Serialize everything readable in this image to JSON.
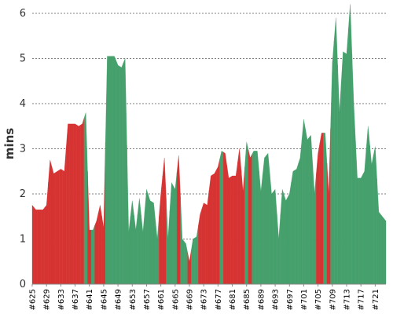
{
  "chart_data": {
    "type": "area",
    "ylabel": "mins",
    "ylim": [
      0,
      6
    ],
    "yticks": [
      0,
      1,
      2,
      3,
      4,
      5,
      6
    ],
    "grid": true,
    "colors": {
      "slower": "#d63333",
      "faster": "#45a06c"
    },
    "x": [
      "#625",
      "#626",
      "#627",
      "#628",
      "#629",
      "#630",
      "#631",
      "#632",
      "#633",
      "#634",
      "#635",
      "#636",
      "#637",
      "#638",
      "#639",
      "#640",
      "#641",
      "#642",
      "#643",
      "#644",
      "#645",
      "#646",
      "#647",
      "#648",
      "#649",
      "#650",
      "#651",
      "#652",
      "#653",
      "#654",
      "#655",
      "#656",
      "#657",
      "#658",
      "#659",
      "#660",
      "#661",
      "#662",
      "#663",
      "#664",
      "#665",
      "#666",
      "#667",
      "#668",
      "#669",
      "#670",
      "#671",
      "#672",
      "#673",
      "#674",
      "#675",
      "#676",
      "#677",
      "#678",
      "#679",
      "#680",
      "#681",
      "#682",
      "#683",
      "#684",
      "#685",
      "#686",
      "#687",
      "#688",
      "#689",
      "#690",
      "#691",
      "#692",
      "#693",
      "#694",
      "#695",
      "#696",
      "#697",
      "#698",
      "#699",
      "#700",
      "#701",
      "#702",
      "#703",
      "#704",
      "#705",
      "#706",
      "#707",
      "#708",
      "#709",
      "#710",
      "#711",
      "#712",
      "#713",
      "#714",
      "#715",
      "#716",
      "#717",
      "#718",
      "#719",
      "#720",
      "#721",
      "#722",
      "#723",
      "#724"
    ],
    "xticks": [
      "#625",
      "#629",
      "#633",
      "#637",
      "#641",
      "#645",
      "#649",
      "#653",
      "#657",
      "#661",
      "#665",
      "#669",
      "#673",
      "#677",
      "#681",
      "#685",
      "#689",
      "#693",
      "#697",
      "#701",
      "#705",
      "#709",
      "#713",
      "#717",
      "#721"
    ],
    "y": [
      1.75,
      1.65,
      1.65,
      1.65,
      1.75,
      2.75,
      2.45,
      2.5,
      2.55,
      2.5,
      3.55,
      3.55,
      3.55,
      3.5,
      3.55,
      3.8,
      1.2,
      1.2,
      1.4,
      1.75,
      1.25,
      5.05,
      5.05,
      5.05,
      4.85,
      4.8,
      5.0,
      1.15,
      1.85,
      1.2,
      1.9,
      1.15,
      2.1,
      1.85,
      1.8,
      1.0,
      2.0,
      2.8,
      1.0,
      2.25,
      2.1,
      2.85,
      1.0,
      0.9,
      0.5,
      1.0,
      1.05,
      1.55,
      1.8,
      1.75,
      2.4,
      2.45,
      2.6,
      2.95,
      2.9,
      2.35,
      2.4,
      2.4,
      3.0,
      2.05,
      3.15,
      2.8,
      2.95,
      2.95,
      2.05,
      2.8,
      2.9,
      2.0,
      2.1,
      1.0,
      2.1,
      1.85,
      2.0,
      2.5,
      2.55,
      2.8,
      3.65,
      3.2,
      3.3,
      2.0,
      2.9,
      3.35,
      3.35,
      2.0,
      4.9,
      5.9,
      3.8,
      5.15,
      5.1,
      6.2,
      4.0,
      2.35,
      2.35,
      2.5,
      3.5,
      2.65,
      3.05,
      1.6,
      1.5,
      1.4
    ],
    "category": [
      "slower",
      "slower",
      "slower",
      "slower",
      "slower",
      "slower",
      "slower",
      "slower",
      "slower",
      "slower",
      "slower",
      "slower",
      "slower",
      "slower",
      "slower",
      "faster",
      "slower",
      "faster",
      "slower",
      "slower",
      "slower",
      "faster",
      "faster",
      "faster",
      "faster",
      "faster",
      "faster",
      "faster",
      "faster",
      "faster",
      "faster",
      "faster",
      "faster",
      "faster",
      "faster",
      "faster",
      "slower",
      "slower",
      "faster",
      "faster",
      "faster",
      "slower",
      "faster",
      "faster",
      "slower",
      "faster",
      "faster",
      "slower",
      "slower",
      "slower",
      "slower",
      "slower",
      "slower",
      "faster",
      "slower",
      "slower",
      "slower",
      "slower",
      "slower",
      "slower",
      "faster",
      "slower",
      "faster",
      "faster",
      "faster",
      "faster",
      "faster",
      "faster",
      "faster",
      "faster",
      "faster",
      "faster",
      "faster",
      "faster",
      "faster",
      "faster",
      "faster",
      "faster",
      "faster",
      "faster",
      "slower",
      "slower",
      "faster",
      "slower",
      "faster",
      "faster",
      "faster",
      "faster",
      "faster",
      "faster",
      "faster",
      "faster",
      "faster",
      "faster",
      "faster",
      "faster",
      "faster",
      "faster",
      "faster",
      "faster"
    ]
  }
}
